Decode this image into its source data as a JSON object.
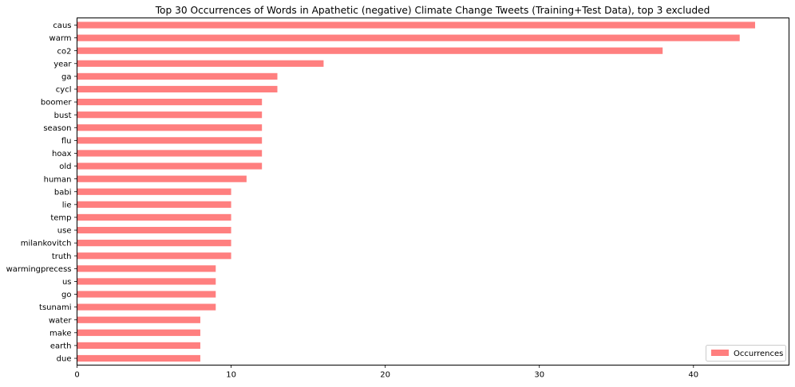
{
  "chart_data": {
    "type": "bar",
    "orientation": "horizontal",
    "title": "Top 30 Occurrences of Words in Apathetic (negative) Climate Change Tweets (Training+Test Data), top 3 excluded",
    "xlabel": "",
    "ylabel": "",
    "xlim": [
      0,
      46.2
    ],
    "xticks": [
      0,
      10,
      20,
      30,
      40
    ],
    "grid": false,
    "legend": {
      "position": "lower-right"
    },
    "series": [
      {
        "name": "Occurrences",
        "color": "#ff7f7f",
        "categories": [
          "caus",
          "warm",
          "co2",
          "year",
          "ga",
          "cycl",
          "boomer",
          "bust",
          "season",
          "flu",
          "hoax",
          "old",
          "human",
          "babi",
          "lie",
          "temp",
          "use",
          "milankovitch",
          "truth",
          "warmingprecess",
          "us",
          "go",
          "tsunami",
          "water",
          "make",
          "earth",
          "due"
        ],
        "values": [
          44,
          43,
          38,
          16,
          13,
          13,
          12,
          12,
          12,
          12,
          12,
          12,
          11,
          10,
          10,
          10,
          10,
          10,
          10,
          9,
          9,
          9,
          9,
          8,
          8,
          8,
          8
        ]
      }
    ]
  }
}
